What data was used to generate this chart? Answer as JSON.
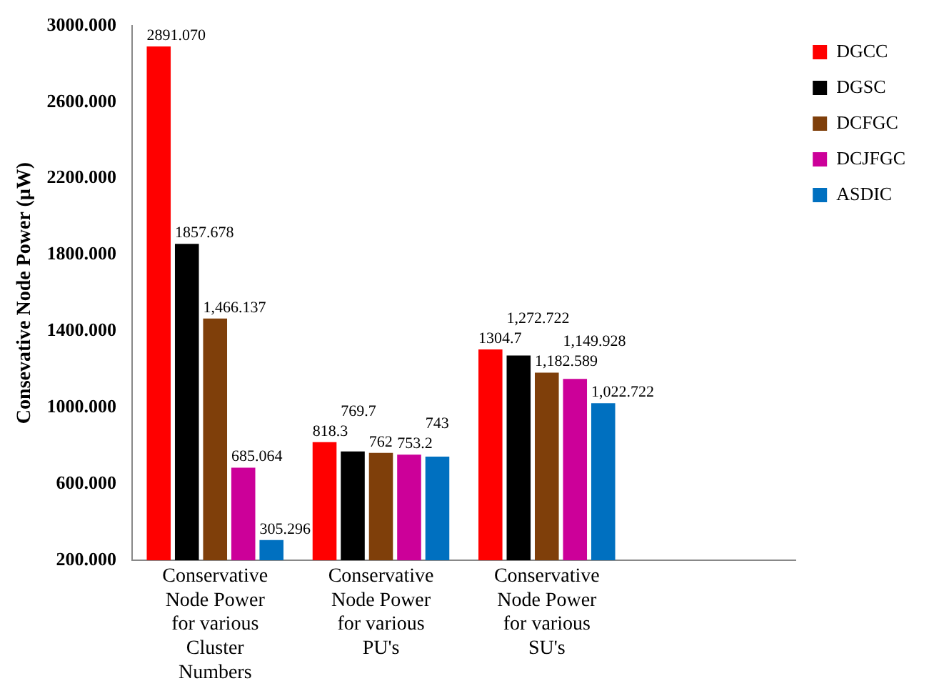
{
  "chart_data": {
    "type": "bar",
    "ylabel": "Consevative Node Power (µW)",
    "categories": [
      "Conservative Node Power for various Cluster Numbers",
      "Conservative Node Power for various PU's",
      "Conservative Node Power for various SU's",
      null
    ],
    "series": [
      {
        "name": "DGCC",
        "color": "#ff0000",
        "values": [
          2891.07,
          818.3,
          1304.7,
          null
        ],
        "value_labels": [
          "2891.070",
          "818.3",
          "1304.7",
          null
        ]
      },
      {
        "name": "DGSC",
        "color": "#000000",
        "values": [
          1857.678,
          769.7,
          1272.722,
          null
        ],
        "value_labels": [
          "1857.678",
          "769.7",
          "1,272.722",
          null
        ]
      },
      {
        "name": "DCFGC",
        "color": "#7f3f0a",
        "values": [
          1466.137,
          762,
          1182.589,
          null
        ],
        "value_labels": [
          "1,466.137",
          "762",
          "1,182.589",
          null
        ]
      },
      {
        "name": "DCJFGC",
        "color": "#cc0099",
        "values": [
          685.064,
          753.2,
          1149.928,
          null
        ],
        "value_labels": [
          "685.064",
          "753.2",
          "1,149.928",
          null
        ]
      },
      {
        "name": "ASDIC",
        "color": "#0070c0",
        "values": [
          305.296,
          743,
          1022.722,
          null
        ],
        "value_labels": [
          "305.296",
          "743",
          "1,022.722",
          null
        ]
      }
    ],
    "ylim": [
      200,
      3000
    ],
    "yticks": [
      {
        "value": 200,
        "label": "200.000"
      },
      {
        "value": 600,
        "label": "600.000"
      },
      {
        "value": 1000,
        "label": "1000.000"
      },
      {
        "value": 1400,
        "label": "1400.000"
      },
      {
        "value": 1800,
        "label": "1800.000"
      },
      {
        "value": 2200,
        "label": "2200.000"
      },
      {
        "value": 2600,
        "label": "2600.000"
      },
      {
        "value": 3000,
        "label": "3000.000"
      }
    ],
    "grid": false,
    "legend": "top right"
  }
}
